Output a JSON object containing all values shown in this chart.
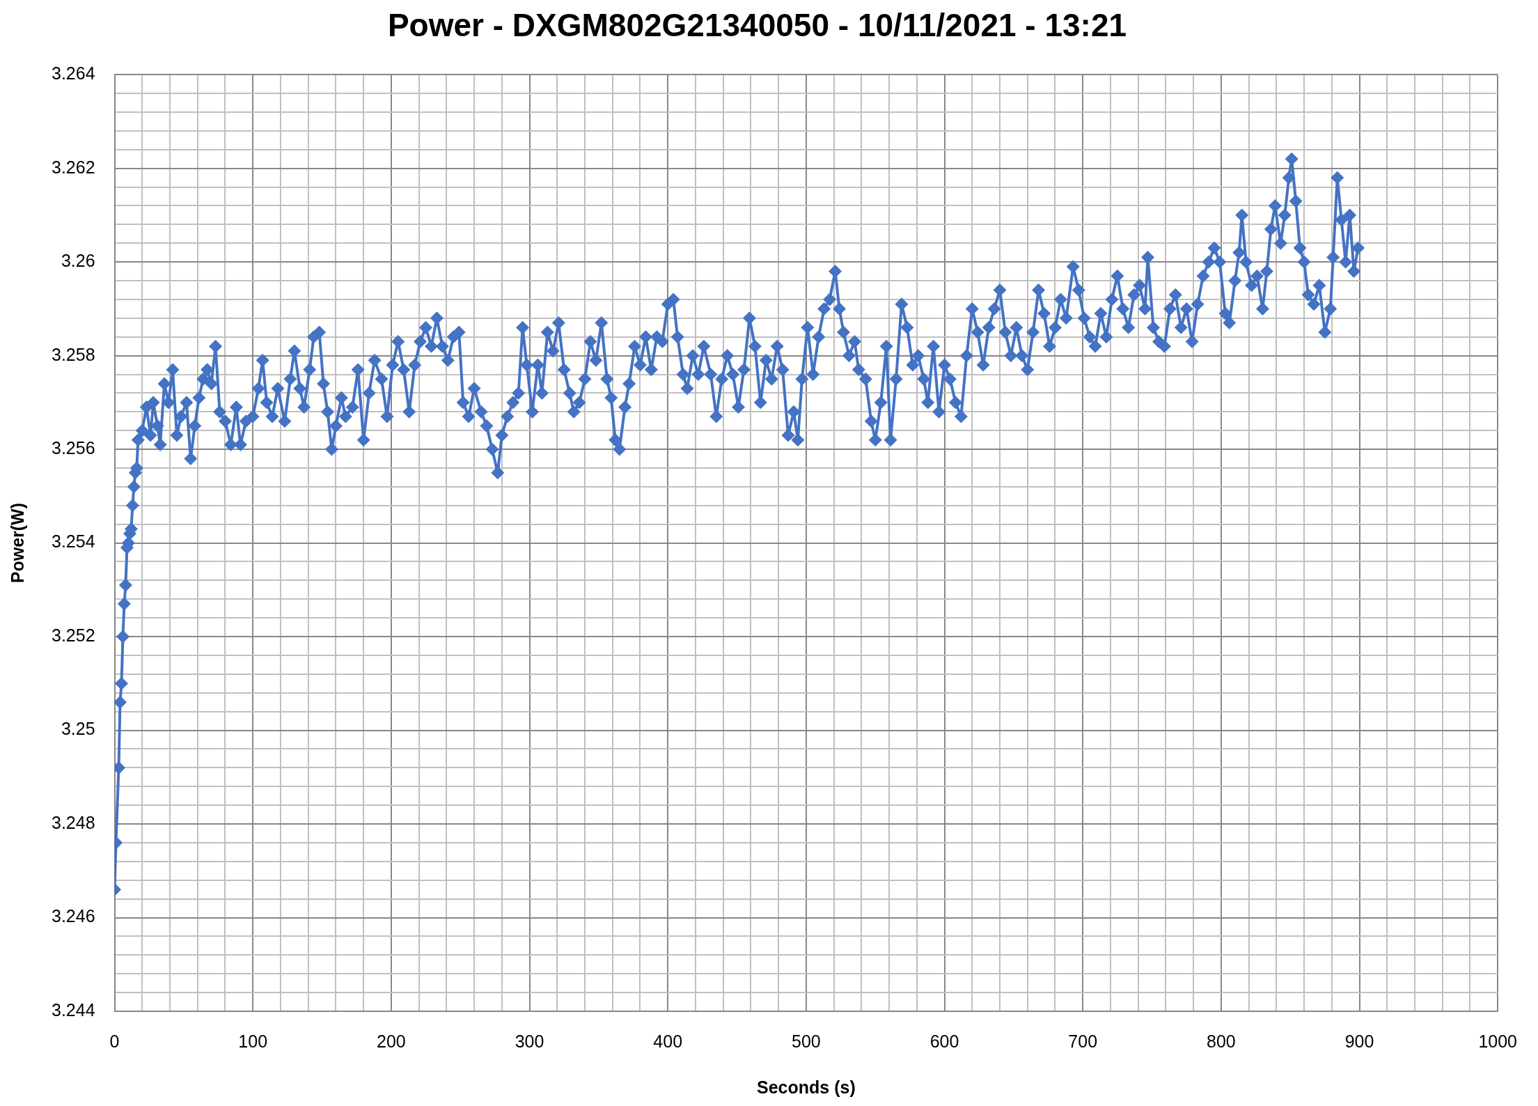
{
  "chart_data": {
    "type": "line",
    "title": "Power - DXGM802G21340050 - 10/11/2021 - 13:21",
    "xlabel": "Seconds (s)",
    "ylabel": "Power(W)",
    "x": [
      0,
      1,
      3,
      4,
      5,
      6,
      7,
      8,
      9,
      10,
      11,
      12,
      13,
      14,
      15,
      16,
      17,
      20,
      23,
      26,
      28,
      31,
      33,
      36,
      39,
      42,
      45,
      48,
      52,
      55,
      58,
      61,
      64,
      67,
      70,
      73,
      76,
      80,
      84,
      88,
      91,
      95,
      100,
      104,
      107,
      110,
      114,
      118,
      123,
      127,
      130,
      134,
      137,
      141,
      144,
      148,
      151,
      154,
      157,
      160,
      164,
      167,
      172,
      176,
      180,
      184,
      188,
      193,
      197,
      201,
      205,
      209,
      213,
      217,
      221,
      225,
      229,
      233,
      237,
      241,
      245,
      249,
      252,
      256,
      260,
      265,
      269,
      273,
      277,
      280,
      284,
      288,
      292,
      295,
      298,
      302,
      306,
      309,
      313,
      317,
      321,
      325,
      329,
      332,
      336,
      340,
      344,
      348,
      352,
      356,
      359,
      362,
      365,
      369,
      372,
      376,
      380,
      384,
      388,
      392,
      396,
      400,
      404,
      407,
      411,
      414,
      418,
      422,
      426,
      431,
      435,
      439,
      443,
      447,
      451,
      455,
      459,
      463,
      467,
      471,
      475,
      479,
      483,
      487,
      491,
      494,
      497,
      501,
      505,
      509,
      513,
      517,
      521,
      524,
      527,
      531,
      535,
      538,
      543,
      547,
      550,
      554,
      558,
      561,
      565,
      569,
      573,
      577,
      581,
      585,
      588,
      592,
      596,
      600,
      604,
      608,
      612,
      616,
      620,
      624,
      628,
      632,
      636,
      640,
      644,
      648,
      652,
      656,
      660,
      664,
      668,
      672,
      676,
      680,
      684,
      688,
      693,
      697,
      701,
      705,
      709,
      713,
      717,
      721,
      725,
      729,
      733,
      737,
      741,
      745,
      747,
      751,
      755,
      759,
      763,
      767,
      771,
      775,
      779,
      783,
      787,
      791,
      795,
      799,
      803,
      806,
      810,
      813,
      815,
      818,
      822,
      826,
      830,
      833,
      836,
      839,
      843,
      846,
      849,
      851,
      854,
      857,
      860,
      863,
      867,
      871,
      875,
      879,
      881,
      884,
      887,
      890,
      893,
      896,
      899
    ],
    "series": [
      {
        "color": "#4472c4",
        "values": [
          3.2466,
          3.2476,
          3.2492,
          3.2506,
          3.251,
          3.252,
          3.2527,
          3.2531,
          3.2539,
          3.254,
          3.2542,
          3.2543,
          3.2548,
          3.2552,
          3.2555,
          3.2556,
          3.2562,
          3.2564,
          3.2569,
          3.2563,
          3.257,
          3.2565,
          3.2561,
          3.2574,
          3.257,
          3.2577,
          3.2563,
          3.2567,
          3.257,
          3.2558,
          3.2565,
          3.2571,
          3.2575,
          3.2577,
          3.2574,
          3.2582,
          3.2568,
          3.2566,
          3.2561,
          3.2569,
          3.2561,
          3.2566,
          3.2567,
          3.2573,
          3.2579,
          3.257,
          3.2567,
          3.2573,
          3.2566,
          3.2575,
          3.2581,
          3.2573,
          3.2569,
          3.2577,
          3.2584,
          3.2585,
          3.2574,
          3.2568,
          3.256,
          3.2565,
          3.2571,
          3.2567,
          3.2569,
          3.2577,
          3.2562,
          3.2572,
          3.2579,
          3.2575,
          3.2567,
          3.2578,
          3.2583,
          3.2577,
          3.2568,
          3.2578,
          3.2583,
          3.2586,
          3.2582,
          3.2588,
          3.2582,
          3.2579,
          3.2584,
          3.2585,
          3.257,
          3.2567,
          3.2573,
          3.2568,
          3.2565,
          3.256,
          3.2555,
          3.2563,
          3.2567,
          3.257,
          3.2572,
          3.2586,
          3.2578,
          3.2568,
          3.2578,
          3.2572,
          3.2585,
          3.2581,
          3.2587,
          3.2577,
          3.2572,
          3.2568,
          3.257,
          3.2575,
          3.2583,
          3.2579,
          3.2587,
          3.2575,
          3.2571,
          3.2562,
          3.256,
          3.2569,
          3.2574,
          3.2582,
          3.2578,
          3.2584,
          3.2577,
          3.2584,
          3.2583,
          3.2591,
          3.2592,
          3.2584,
          3.2576,
          3.2573,
          3.258,
          3.2576,
          3.2582,
          3.2576,
          3.2567,
          3.2575,
          3.258,
          3.2576,
          3.2569,
          3.2577,
          3.2588,
          3.2582,
          3.257,
          3.2579,
          3.2575,
          3.2582,
          3.2577,
          3.2563,
          3.2568,
          3.2562,
          3.2575,
          3.2586,
          3.2576,
          3.2584,
          3.259,
          3.2592,
          3.2598,
          3.259,
          3.2585,
          3.258,
          3.2583,
          3.2577,
          3.2575,
          3.2566,
          3.2562,
          3.257,
          3.2582,
          3.2562,
          3.2575,
          3.2591,
          3.2586,
          3.2578,
          3.258,
          3.2575,
          3.257,
          3.2582,
          3.2568,
          3.2578,
          3.2575,
          3.257,
          3.2567,
          3.258,
          3.259,
          3.2585,
          3.2578,
          3.2586,
          3.259,
          3.2594,
          3.2585,
          3.258,
          3.2586,
          3.258,
          3.2577,
          3.2585,
          3.2594,
          3.2589,
          3.2582,
          3.2586,
          3.2592,
          3.2588,
          3.2599,
          3.2594,
          3.2588,
          3.2584,
          3.2582,
          3.2589,
          3.2584,
          3.2592,
          3.2597,
          3.259,
          3.2586,
          3.2593,
          3.2595,
          3.259,
          3.2601,
          3.2586,
          3.2583,
          3.2582,
          3.259,
          3.2593,
          3.2586,
          3.259,
          3.2583,
          3.2591,
          3.2597,
          3.26,
          3.2603,
          3.26,
          3.2589,
          3.2587,
          3.2596,
          3.2602,
          3.261,
          3.26,
          3.2595,
          3.2597,
          3.259,
          3.2598,
          3.2607,
          3.2612,
          3.2604,
          3.261,
          3.2618,
          3.2622,
          3.2613,
          3.2603,
          3.26,
          3.2593,
          3.2591,
          3.2595,
          3.2585,
          3.259,
          3.2601,
          3.2618,
          3.2609,
          3.26,
          3.261,
          3.2598,
          3.2603
        ]
      }
    ],
    "xlim": [
      0,
      1000
    ],
    "xticks": [
      0,
      {
        "value": 20,
        "label": null
      },
      {
        "value": 40,
        "label": null
      },
      {
        "value": 60,
        "label": null
      },
      {
        "value": 80,
        "label": null
      },
      100,
      {
        "value": 120,
        "label": null
      },
      {
        "value": 140,
        "label": null
      },
      {
        "value": 160,
        "label": null
      },
      {
        "value": 180,
        "label": null
      },
      200,
      {
        "value": 220,
        "label": null
      },
      {
        "value": 240,
        "label": null
      },
      {
        "value": 260,
        "label": null
      },
      {
        "value": 280,
        "label": null
      },
      300,
      {
        "value": 320,
        "label": null
      },
      {
        "value": 340,
        "label": null
      },
      {
        "value": 360,
        "label": null
      },
      {
        "value": 380,
        "label": null
      },
      400,
      {
        "value": 420,
        "label": null
      },
      {
        "value": 440,
        "label": null
      },
      {
        "value": 460,
        "label": null
      },
      {
        "value": 480,
        "label": null
      },
      500,
      {
        "value": 520,
        "label": null
      },
      {
        "value": 540,
        "label": null
      },
      {
        "value": 560,
        "label": null
      },
      {
        "value": 580,
        "label": null
      },
      600,
      {
        "value": 620,
        "label": null
      },
      {
        "value": 640,
        "label": null
      },
      {
        "value": 660,
        "label": null
      },
      {
        "value": 680,
        "label": null
      },
      700,
      {
        "value": 720,
        "label": null
      },
      {
        "value": 740,
        "label": null
      },
      {
        "value": 760,
        "label": null
      },
      {
        "value": 780,
        "label": null
      },
      800,
      {
        "value": 820,
        "label": null
      },
      {
        "value": 840,
        "label": null
      },
      {
        "value": 860,
        "label": null
      },
      {
        "value": 880,
        "label": null
      },
      900,
      {
        "value": 920,
        "label": null
      },
      {
        "value": 940,
        "label": null
      },
      {
        "value": 960,
        "label": null
      },
      {
        "value": 980,
        "label": null
      },
      1000
    ],
    "ylim": [
      3.244,
      3.264
    ],
    "yticks": [
      3.244,
      {
        "value": 3.2444,
        "label": null
      },
      {
        "value": 3.2448,
        "label": null
      },
      {
        "value": 3.2452,
        "label": null
      },
      {
        "value": 3.2456,
        "label": null
      },
      3.246,
      {
        "value": 3.2464,
        "label": null
      },
      {
        "value": 3.2468,
        "label": null
      },
      {
        "value": 3.2472,
        "label": null
      },
      {
        "value": 3.2476,
        "label": null
      },
      3.248,
      {
        "value": 3.2484,
        "label": null
      },
      {
        "value": 3.2488,
        "label": null
      },
      {
        "value": 3.2492,
        "label": null
      },
      {
        "value": 3.2496,
        "label": null
      },
      3.25,
      {
        "value": 3.2504,
        "label": null
      },
      {
        "value": 3.2508,
        "label": null
      },
      {
        "value": 3.2512,
        "label": null
      },
      {
        "value": 3.2516,
        "label": null
      },
      3.252,
      {
        "value": 3.2524,
        "label": null
      },
      {
        "value": 3.2528,
        "label": null
      },
      {
        "value": 3.2532,
        "label": null
      },
      {
        "value": 3.2536,
        "label": null
      },
      3.254,
      {
        "value": 3.2544,
        "label": null
      },
      {
        "value": 3.2548,
        "label": null
      },
      {
        "value": 3.2552,
        "label": null
      },
      {
        "value": 3.2556,
        "label": null
      },
      3.256,
      {
        "value": 3.2564,
        "label": null
      },
      {
        "value": 3.2568,
        "label": null
      },
      {
        "value": 3.2572,
        "label": null
      },
      {
        "value": 3.2576,
        "label": null
      },
      3.258,
      {
        "value": 3.2584,
        "label": null
      },
      {
        "value": 3.2588,
        "label": null
      },
      {
        "value": 3.2592,
        "label": null
      },
      {
        "value": 3.2596,
        "label": null
      },
      3.26,
      {
        "value": 3.2604,
        "label": null
      },
      {
        "value": 3.2608,
        "label": null
      },
      {
        "value": 3.2612,
        "label": null
      },
      {
        "value": 3.2616,
        "label": null
      },
      3.262,
      {
        "value": 3.2624,
        "label": null
      },
      {
        "value": 3.2628,
        "label": null
      },
      {
        "value": 3.2632,
        "label": null
      },
      {
        "value": 3.2636,
        "label": null
      },
      3.264
    ],
    "grid": true,
    "marker": "diamond",
    "line_style": "solid"
  }
}
